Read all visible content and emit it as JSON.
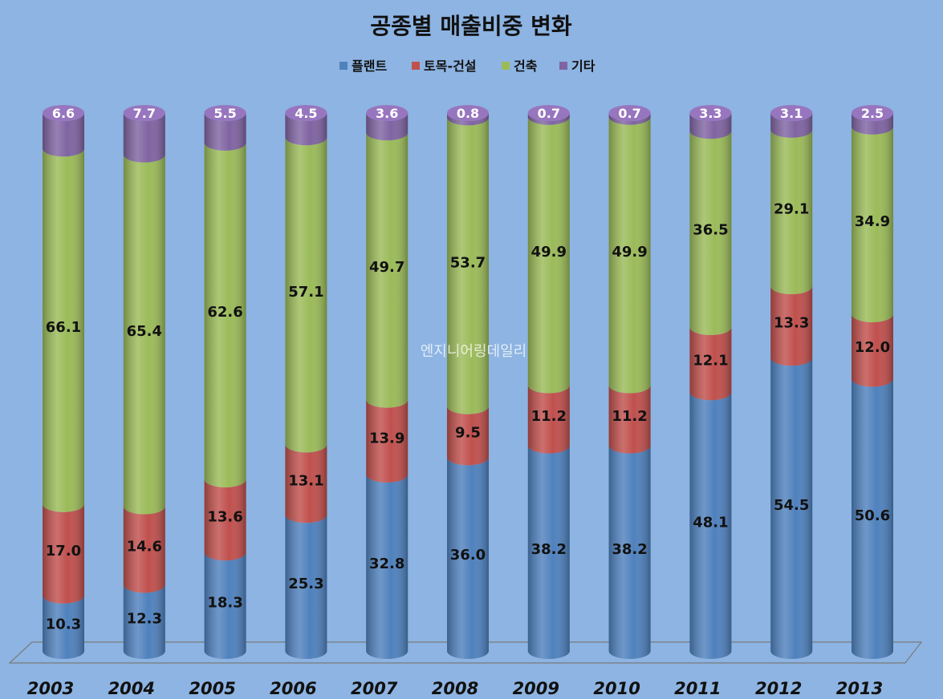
{
  "watermark": "엔지니어링데일리",
  "colors": {
    "background": "#8db4e2",
    "plant": "#4f81bd",
    "civil": "#c0504d",
    "building": "#9bbb59",
    "other": "#8064a2"
  },
  "chart_data": {
    "type": "bar",
    "stacked": true,
    "title": "공종별 매출비중 변화",
    "legend_position": "top",
    "categories": [
      "2003",
      "2004",
      "2005",
      "2006",
      "2007",
      "2008",
      "2009",
      "2010",
      "2011",
      "2012",
      "2013"
    ],
    "ylim": [
      0,
      100
    ],
    "grid": false,
    "series": [
      {
        "name": "플랜트",
        "values": [
          10.3,
          12.3,
          18.3,
          25.3,
          32.8,
          36.0,
          38.2,
          38.2,
          48.1,
          54.5,
          50.6
        ]
      },
      {
        "name": "토목-건설",
        "values": [
          17.0,
          14.6,
          13.6,
          13.1,
          13.9,
          9.5,
          11.2,
          11.2,
          12.1,
          13.3,
          12.0
        ]
      },
      {
        "name": "건축",
        "values": [
          66.1,
          65.4,
          62.6,
          57.1,
          49.7,
          53.7,
          49.9,
          49.9,
          36.5,
          29.1,
          34.9
        ]
      },
      {
        "name": "기타",
        "values": [
          6.6,
          7.7,
          5.5,
          4.5,
          3.6,
          0.8,
          0.7,
          0.7,
          3.3,
          3.1,
          2.5
        ]
      }
    ]
  }
}
